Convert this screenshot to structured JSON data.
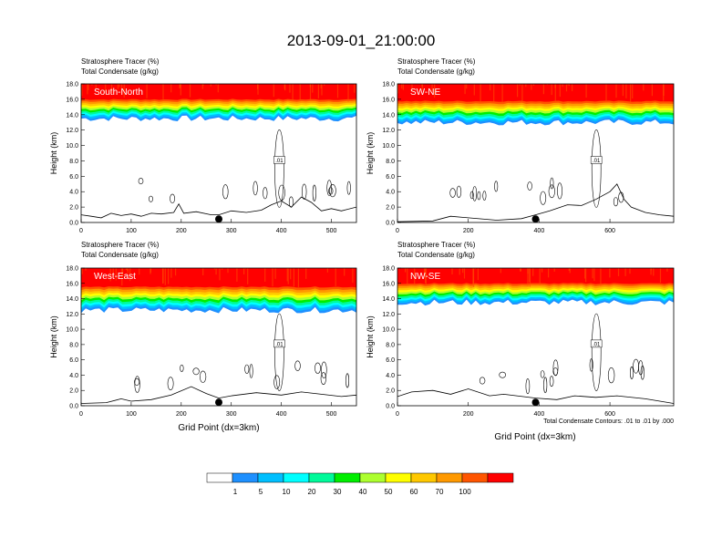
{
  "title": "2013-09-01_21:00:00",
  "panel_subtitle_line1": "Stratosphere Tracer   (%)",
  "panel_subtitle_line2": "Total Condensate   (g/kg)",
  "xlabel": "Grid Point (dx=3km)",
  "ylabel": "Height (km)",
  "contour_note": "Total Condensate Contours: .01 to .01 by .000",
  "contour_label": ".01",
  "colorbar": {
    "colors": [
      "#ffffff",
      "#1e90ff",
      "#00bfff",
      "#00ffff",
      "#00fa9a",
      "#00ee00",
      "#adff2f",
      "#ffff00",
      "#ffc800",
      "#ff9900",
      "#ff5500",
      "#ff0000"
    ],
    "labels": [
      "1",
      "5",
      "10",
      "20",
      "30",
      "40",
      "50",
      "60",
      "70",
      "100"
    ]
  },
  "chart_data": [
    {
      "type": "contour",
      "name": "South-North",
      "xlim": [
        0,
        550
      ],
      "ylim": [
        0,
        18
      ],
      "xticks": [
        0,
        100,
        200,
        300,
        400,
        500
      ],
      "yticks": [
        "0.0",
        "2.0",
        "4.0",
        "6.0",
        "8.0",
        "10.0",
        "12.0",
        "14.0",
        "16.0",
        "18.0"
      ],
      "dot_x": 275,
      "tracer_base_km": 13.5,
      "terrain": [
        [
          0,
          1.0
        ],
        [
          20,
          0.8
        ],
        [
          40,
          0.6
        ],
        [
          60,
          1.2
        ],
        [
          80,
          0.9
        ],
        [
          100,
          1.1
        ],
        [
          120,
          0.8
        ],
        [
          140,
          1.2
        ],
        [
          160,
          1.1
        ],
        [
          185,
          1.3
        ],
        [
          195,
          2.4
        ],
        [
          205,
          1.2
        ],
        [
          230,
          1.4
        ],
        [
          260,
          1.0
        ],
        [
          275,
          1.0
        ],
        [
          300,
          1.5
        ],
        [
          330,
          1.3
        ],
        [
          360,
          1.6
        ],
        [
          380,
          2.3
        ],
        [
          400,
          2.8
        ],
        [
          420,
          2.0
        ],
        [
          440,
          3.3
        ],
        [
          460,
          2.6
        ],
        [
          480,
          1.5
        ],
        [
          500,
          1.8
        ],
        [
          520,
          1.5
        ],
        [
          550,
          2.0
        ]
      ]
    },
    {
      "type": "contour",
      "name": "SW-NE",
      "xlim": [
        0,
        780
      ],
      "ylim": [
        0,
        18
      ],
      "xticks": [
        0,
        200,
        400,
        600
      ],
      "yticks": [
        "0.0",
        "2.0",
        "4.0",
        "6.0",
        "8.0",
        "10.0",
        "12.0",
        "14.0",
        "16.0",
        "18.0"
      ],
      "dot_x": 390,
      "tracer_base_km": 13.0,
      "terrain": [
        [
          0,
          0.1
        ],
        [
          100,
          0.2
        ],
        [
          150,
          0.8
        ],
        [
          200,
          0.6
        ],
        [
          280,
          0.3
        ],
        [
          350,
          0.5
        ],
        [
          390,
          1.0
        ],
        [
          430,
          1.5
        ],
        [
          480,
          2.3
        ],
        [
          520,
          2.2
        ],
        [
          560,
          3.0
        ],
        [
          600,
          4.0
        ],
        [
          620,
          5.0
        ],
        [
          640,
          3.0
        ],
        [
          660,
          2.0
        ],
        [
          700,
          1.3
        ],
        [
          740,
          1.0
        ],
        [
          780,
          0.8
        ]
      ]
    },
    {
      "type": "contour",
      "name": "West-East",
      "xlim": [
        0,
        550
      ],
      "ylim": [
        0,
        18
      ],
      "xticks": [
        0,
        100,
        200,
        300,
        400,
        500
      ],
      "yticks": [
        "0.0",
        "2.0",
        "4.0",
        "6.0",
        "8.0",
        "10.0",
        "12.0",
        "14.0",
        "16.0",
        "18.0"
      ],
      "dot_x": 275,
      "tracer_base_km": 12.5,
      "terrain": [
        [
          0,
          0.3
        ],
        [
          50,
          0.4
        ],
        [
          80,
          0.9
        ],
        [
          100,
          0.6
        ],
        [
          140,
          0.8
        ],
        [
          180,
          1.4
        ],
        [
          220,
          2.5
        ],
        [
          250,
          1.6
        ],
        [
          275,
          1.0
        ],
        [
          300,
          1.3
        ],
        [
          350,
          1.7
        ],
        [
          400,
          1.4
        ],
        [
          440,
          1.8
        ],
        [
          480,
          1.5
        ],
        [
          520,
          1.2
        ],
        [
          550,
          1.4
        ]
      ]
    },
    {
      "type": "contour",
      "name": "NW-SE",
      "xlim": [
        0,
        780
      ],
      "ylim": [
        0,
        18
      ],
      "xticks": [
        0,
        200,
        400,
        600
      ],
      "yticks": [
        "0.0",
        "2.0",
        "4.0",
        "6.0",
        "8.0",
        "10.0",
        "12.0",
        "14.0",
        "16.0",
        "18.0"
      ],
      "dot_x": 390,
      "tracer_base_km": 13.5,
      "terrain": [
        [
          0,
          1.2
        ],
        [
          40,
          1.8
        ],
        [
          100,
          2.0
        ],
        [
          150,
          1.5
        ],
        [
          200,
          2.2
        ],
        [
          260,
          1.3
        ],
        [
          300,
          1.5
        ],
        [
          390,
          1.0
        ],
        [
          450,
          0.8
        ],
        [
          500,
          1.3
        ],
        [
          560,
          1.1
        ],
        [
          620,
          1.3
        ],
        [
          700,
          0.9
        ],
        [
          780,
          0.3
        ]
      ]
    }
  ]
}
